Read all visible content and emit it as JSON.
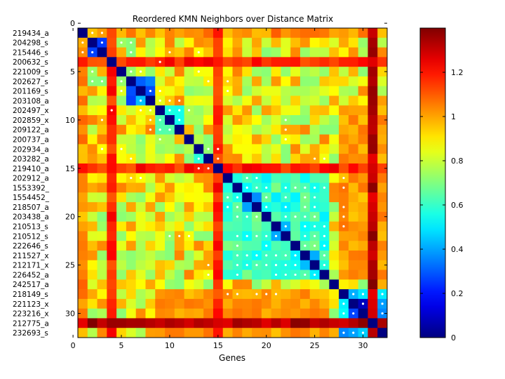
{
  "chart_data": {
    "type": "heatmap",
    "title": "Reordered KMN Neighbors over Distance Matrix",
    "xlabel": "Genes",
    "ylabel": "",
    "xlim": [
      0.5,
      32.5
    ],
    "ylim": [
      0.5,
      32.5
    ],
    "x_ticks": [
      0,
      5,
      10,
      15,
      20,
      25,
      30
    ],
    "y_ticks": [
      0,
      5,
      10,
      15,
      20,
      25,
      30
    ],
    "row_labels": [
      "219434_a",
      "204298_s",
      "215446_s",
      "200632_s",
      "221009_s",
      "202627_s",
      "201169_s",
      "203108_a",
      "202497_x",
      "202859_x",
      "209122_a",
      "200737_a",
      "202934_a",
      "203282_a",
      "219410_a",
      "202912_a",
      "1553392_",
      "1554452_",
      "218507_a",
      "203438_a",
      "210513_s",
      "210512_s",
      "222646_s",
      "211527_x",
      "212171_x",
      "226452_a",
      "242517_a",
      "218149_s",
      "221123_x",
      "223216_x",
      "212775_a",
      "232693_s"
    ],
    "colorbar": {
      "colormap": "jet",
      "range": [
        0,
        1.4
      ],
      "ticks": [
        0,
        0.2,
        0.4,
        0.6,
        0.8,
        1,
        1.2
      ]
    },
    "cluster_blocks": [
      {
        "start": 1,
        "end": 3,
        "value": 0.2
      },
      {
        "start": 6,
        "end": 8,
        "value": 0.25
      },
      {
        "start": 9,
        "end": 11,
        "value": 0.45
      },
      {
        "start": 13,
        "end": 14,
        "value": 0.55
      },
      {
        "start": 16,
        "end": 26,
        "value": 0.5
      },
      {
        "start": 18,
        "end": 19,
        "value": 0.2
      },
      {
        "start": 21,
        "end": 22,
        "value": 0.35
      },
      {
        "start": 24,
        "end": 25,
        "value": 0.25
      },
      {
        "start": 28,
        "end": 32,
        "value": 0.35
      },
      {
        "start": 29,
        "end": 30,
        "value": 0.08
      }
    ],
    "row_bias": [
      {
        "row": 4,
        "value": 1.1
      },
      {
        "row": 15,
        "value": 1.1
      },
      {
        "row": 31,
        "value": 1.25
      },
      {
        "row": 1,
        "value": 0.95
      }
    ],
    "neighbor_markers": [
      [
        1,
        2
      ],
      [
        1,
        3
      ],
      [
        2,
        3
      ],
      [
        2,
        5
      ],
      [
        2,
        6
      ],
      [
        3,
        6
      ],
      [
        3,
        10
      ],
      [
        3,
        13
      ],
      [
        4,
        9
      ],
      [
        5,
        6
      ],
      [
        5,
        7
      ],
      [
        5,
        13
      ],
      [
        6,
        14
      ],
      [
        6,
        16
      ],
      [
        7,
        8
      ],
      [
        7,
        9
      ],
      [
        7,
        16
      ],
      [
        8,
        9
      ],
      [
        8,
        10
      ],
      [
        8,
        11
      ],
      [
        9,
        10
      ],
      [
        9,
        11
      ],
      [
        9,
        12
      ],
      [
        10,
        11
      ],
      [
        10,
        22
      ],
      [
        11,
        22
      ],
      [
        12,
        22
      ],
      [
        13,
        14
      ],
      [
        13,
        15
      ],
      [
        14,
        15
      ],
      [
        14,
        25
      ],
      [
        14,
        26
      ],
      [
        16,
        18
      ],
      [
        16,
        19
      ],
      [
        17,
        18
      ],
      [
        17,
        19
      ],
      [
        17,
        20
      ],
      [
        17,
        22
      ],
      [
        17,
        23
      ],
      [
        17,
        24
      ],
      [
        17,
        25
      ],
      [
        17,
        26
      ],
      [
        18,
        20
      ],
      [
        18,
        22
      ],
      [
        18,
        24
      ],
      [
        18,
        25
      ],
      [
        19,
        20
      ],
      [
        19,
        22
      ],
      [
        19,
        24
      ],
      [
        19,
        25
      ],
      [
        20,
        22
      ],
      [
        20,
        23
      ],
      [
        20,
        24
      ],
      [
        20,
        25
      ],
      [
        21,
        22
      ],
      [
        21,
        24
      ],
      [
        21,
        25
      ],
      [
        21,
        26
      ],
      [
        22,
        24
      ],
      [
        22,
        25
      ],
      [
        22,
        26
      ],
      [
        23,
        24
      ],
      [
        23,
        25
      ],
      [
        23,
        26
      ],
      [
        24,
        26
      ],
      [
        25,
        26
      ],
      [
        28,
        29
      ],
      [
        28,
        30
      ],
      [
        28,
        32
      ],
      [
        29,
        30
      ],
      [
        29,
        32
      ],
      [
        30,
        32
      ],
      [
        16,
        28
      ],
      [
        17,
        28
      ],
      [
        19,
        28
      ],
      [
        20,
        28
      ],
      [
        21,
        28
      ]
    ]
  }
}
